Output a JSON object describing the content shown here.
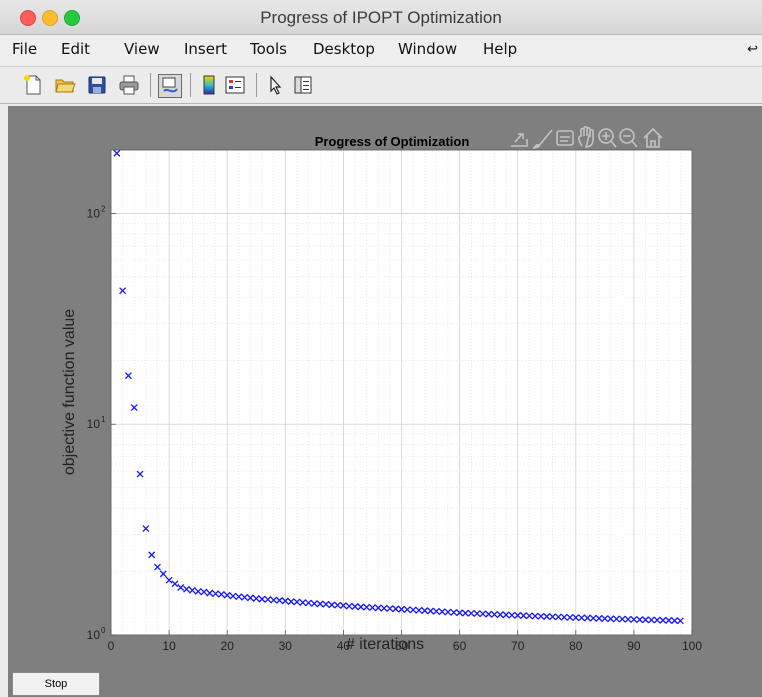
{
  "window": {
    "title": "Progress of IPOPT Optimization"
  },
  "menu": {
    "items": [
      "File",
      "Edit",
      "View",
      "Insert",
      "Tools",
      "Desktop",
      "Window",
      "Help"
    ]
  },
  "toolbar": {
    "icons": [
      "new-figure-icon",
      "open-file-icon",
      "save-icon",
      "print-icon",
      "link-plot-icon",
      "colorbar-icon",
      "legend-icon",
      "pointer-icon",
      "property-inspector-icon"
    ]
  },
  "axes_toolbar": {
    "icons": [
      "export-icon",
      "brush-icon",
      "data-tips-icon",
      "pan-icon",
      "zoom-in-icon",
      "zoom-out-icon",
      "home-icon"
    ]
  },
  "stop_button": {
    "label": "Stop"
  },
  "colors": {
    "figure_bg": "#7f7f7f",
    "axes_bg": "#ffffff",
    "marker": "#1515ff"
  },
  "chart_data": {
    "type": "scatter",
    "title": "Progress of Optimization",
    "xlabel": "# iterations",
    "ylabel": "objective function value",
    "yscale": "log",
    "xlim": [
      0,
      100
    ],
    "ylim": [
      1,
      200
    ],
    "xticks": [
      0,
      10,
      20,
      30,
      40,
      50,
      60,
      70,
      80,
      90,
      100
    ],
    "xtick_labels": [
      "0",
      "10",
      "20",
      "30",
      "40",
      "50",
      "60",
      "70",
      "80",
      "90",
      "100"
    ],
    "ytick_labels": [
      {
        "base": "10",
        "exp": "0",
        "value": 1
      },
      {
        "base": "10",
        "exp": "1",
        "value": 10
      },
      {
        "base": "10",
        "exp": "2",
        "value": 100
      }
    ],
    "grid": true,
    "minor_grid": true,
    "marker": "x",
    "series": [
      {
        "x": [
          1,
          2,
          3,
          4,
          5,
          6,
          7,
          8,
          9,
          10,
          11,
          12,
          13,
          14,
          15,
          16,
          17,
          18,
          19,
          20,
          21,
          22,
          23,
          24,
          25,
          26,
          27,
          28,
          29,
          30,
          31,
          32,
          33,
          34,
          35,
          36,
          37,
          38,
          39,
          40,
          41,
          42,
          43,
          44,
          45,
          46,
          47,
          48,
          49,
          50,
          51,
          52,
          53,
          54,
          55,
          56,
          57,
          58,
          59,
          60,
          61,
          62,
          63,
          64,
          65,
          66,
          67,
          68,
          69,
          70,
          71,
          72,
          73,
          74,
          75,
          76,
          77,
          78,
          79,
          80,
          81,
          82,
          83,
          84,
          85,
          86,
          87,
          88,
          89,
          90,
          91,
          92,
          93,
          94,
          95,
          96,
          97,
          98
        ],
        "y": [
          193,
          43,
          17,
          12,
          5.8,
          3.2,
          2.4,
          2.1,
          1.95,
          1.82,
          1.75,
          1.68,
          1.65,
          1.63,
          1.61,
          1.6,
          1.58,
          1.57,
          1.56,
          1.545,
          1.53,
          1.52,
          1.51,
          1.5,
          1.49,
          1.48,
          1.475,
          1.465,
          1.46,
          1.45,
          1.44,
          1.435,
          1.425,
          1.42,
          1.41,
          1.405,
          1.4,
          1.39,
          1.385,
          1.38,
          1.37,
          1.365,
          1.36,
          1.355,
          1.35,
          1.345,
          1.34,
          1.335,
          1.33,
          1.325,
          1.32,
          1.315,
          1.31,
          1.305,
          1.3,
          1.295,
          1.29,
          1.285,
          1.28,
          1.275,
          1.27,
          1.267,
          1.264,
          1.26,
          1.256,
          1.252,
          1.249,
          1.246,
          1.242,
          1.239,
          1.236,
          1.233,
          1.23,
          1.227,
          1.224,
          1.221,
          1.218,
          1.215,
          1.212,
          1.21,
          1.207,
          1.204,
          1.202,
          1.199,
          1.197,
          1.194,
          1.192,
          1.19,
          1.187,
          1.185,
          1.183,
          1.181,
          1.179,
          1.177,
          1.175,
          1.173,
          1.17,
          1.168
        ]
      }
    ]
  }
}
